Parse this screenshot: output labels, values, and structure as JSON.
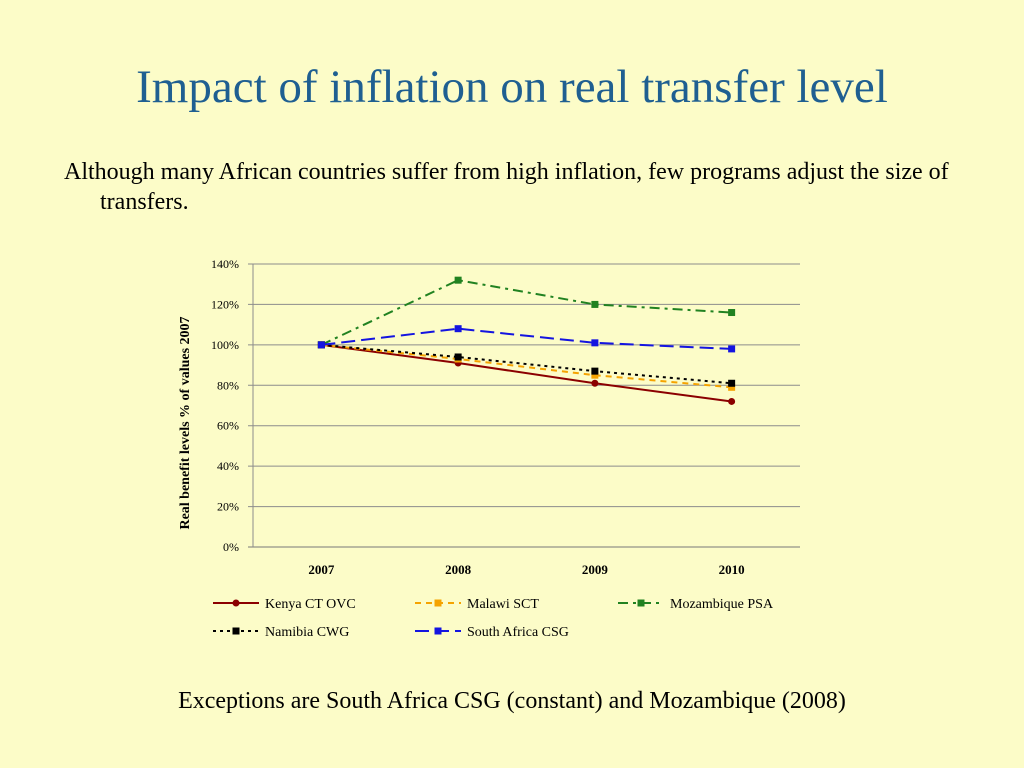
{
  "slide": {
    "title": "Impact of inflation on real transfer level",
    "subtitle": "Although many African countries suffer from high inflation, few programs adjust the size of transfers.",
    "footnote": "Exceptions are South Africa CSG (constant) and Mozambique (2008)"
  },
  "chart_data": {
    "type": "line",
    "title": "",
    "xlabel": "",
    "ylabel": "Real benefit levels % of values 2007",
    "categories": [
      "2007",
      "2008",
      "2009",
      "2010"
    ],
    "ylim": [
      0,
      140
    ],
    "yticks": [
      "0%",
      "20%",
      "40%",
      "60%",
      "80%",
      "100%",
      "120%",
      "140%"
    ],
    "grid": true,
    "legend": "bottom",
    "series": [
      {
        "name": "Kenya CT OVC",
        "values": [
          100,
          91,
          81,
          72
        ],
        "color": "#8B0000",
        "dash": "solid",
        "marker": "circle"
      },
      {
        "name": "Malawi SCT",
        "values": [
          100,
          93,
          85,
          79
        ],
        "color": "#F5A300",
        "dash": "dash",
        "marker": "square"
      },
      {
        "name": "Mozambique PSA",
        "values": [
          100,
          132,
          120,
          116
        ],
        "color": "#218221",
        "dash": "dashdot",
        "marker": "square"
      },
      {
        "name": "Namibia CWG",
        "values": [
          100,
          94,
          87,
          81
        ],
        "color": "#000000",
        "dash": "dot",
        "marker": "square"
      },
      {
        "name": "South Africa CSG",
        "values": [
          100,
          108,
          101,
          98
        ],
        "color": "#1414E0",
        "dash": "longdash",
        "marker": "square"
      }
    ]
  }
}
